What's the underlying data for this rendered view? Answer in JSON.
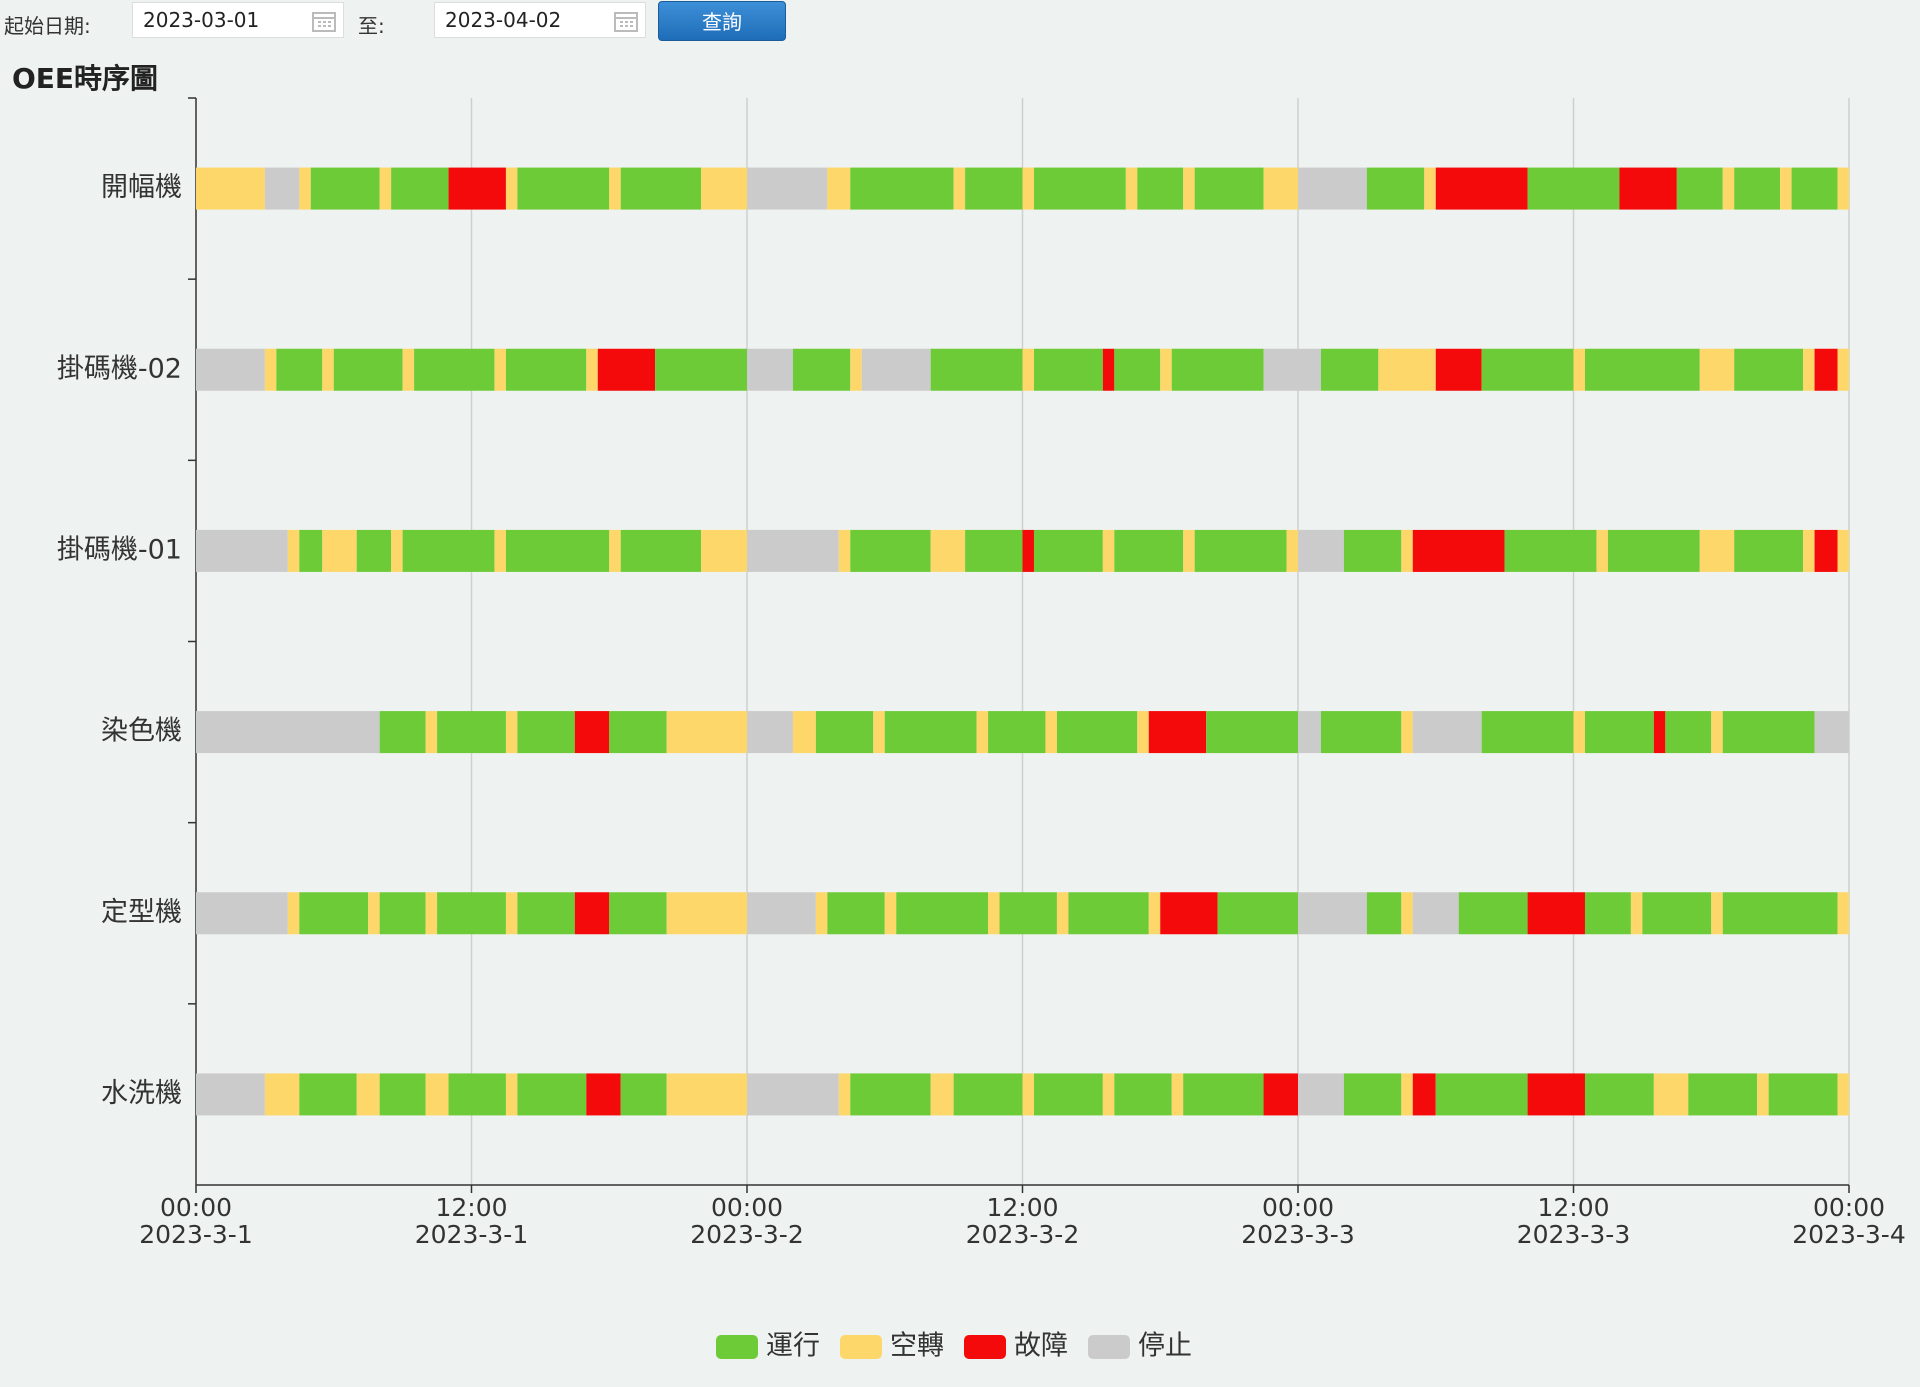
{
  "controls": {
    "start_label": "起始日期:",
    "start_value": "2023-03-01",
    "end_label": "至:",
    "end_value": "2023-04-02",
    "button": "查詢"
  },
  "chart_data": {
    "type": "timeline",
    "title": "OEE時序圖",
    "series": [
      {
        "name": "運行",
        "color": "#6dcb38"
      },
      {
        "name": "空轉",
        "color": "#fed76b"
      },
      {
        "name": "故障",
        "color": "#f40a0a"
      },
      {
        "name": "停止",
        "color": "#cbcbcb"
      }
    ],
    "xlim": [
      0,
      72
    ],
    "xticks": [
      {
        "value": 0,
        "label": "00:00",
        "date": "2023-3-1"
      },
      {
        "value": 12,
        "label": "12:00",
        "date": "2023-3-1"
      },
      {
        "value": 24,
        "label": "00:00",
        "date": "2023-3-2"
      },
      {
        "value": 36,
        "label": "12:00",
        "date": "2023-3-2"
      },
      {
        "value": 48,
        "label": "00:00",
        "date": "2023-3-3"
      },
      {
        "value": 60,
        "label": "12:00",
        "date": "2023-3-3"
      },
      {
        "value": 72,
        "label": "00:00",
        "date": "2023-3-4"
      }
    ],
    "grid": true,
    "rows": [
      {
        "name": "開幅機",
        "states": [
          "空轉",
          "停止",
          "空轉",
          "運行",
          "空轉",
          "運行",
          "故障",
          "空轉",
          "運行",
          "空轉",
          "運行",
          "空轉",
          "停止",
          "空轉",
          "運行",
          "空轉",
          "運行",
          "空轉",
          "運行",
          "空轉",
          "運行",
          "空轉",
          "運行",
          "空轉",
          "停止",
          "運行",
          "空轉",
          "故障",
          "運行",
          "故障",
          "運行",
          "空轉",
          "運行",
          "空轉",
          "運行",
          "空轉"
        ],
        "hours": [
          3,
          1.5,
          0.5,
          3,
          0.5,
          2.5,
          2.5,
          0.5,
          4,
          0.5,
          3.5,
          2,
          3.5,
          1,
          4.5,
          0.5,
          2.5,
          0.5,
          4,
          0.5,
          2,
          0.5,
          3,
          1.5,
          3,
          2.5,
          0.5,
          4,
          4,
          2.5,
          2,
          0.5,
          2,
          0.5,
          2,
          0.5
        ]
      },
      {
        "name": "掛碼機-02",
        "states": [
          "停止",
          "空轉",
          "運行",
          "空轉",
          "運行",
          "空轉",
          "運行",
          "空轉",
          "運行",
          "空轉",
          "故障",
          "運行",
          "停止",
          "運行",
          "空轉",
          "停止",
          "運行",
          "空轉",
          "運行",
          "故障",
          "運行",
          "空轉",
          "運行",
          "停止",
          "運行",
          "空轉",
          "故障",
          "運行",
          "空轉",
          "運行",
          "空轉",
          "運行",
          "空轉",
          "故障",
          "空轉"
        ],
        "hours": [
          3,
          0.5,
          2,
          0.5,
          3,
          0.5,
          3.5,
          0.5,
          3.5,
          0.5,
          2.5,
          4,
          2,
          2.5,
          0.5,
          3,
          4,
          0.5,
          3,
          0.5,
          2,
          0.5,
          4,
          2.5,
          2.5,
          2.5,
          2,
          4,
          0.5,
          5,
          1.5,
          3,
          0.5,
          1,
          0.5
        ]
      },
      {
        "name": "掛碼機-01",
        "states": [
          "停止",
          "空轉",
          "運行",
          "空轉",
          "運行",
          "空轉",
          "運行",
          "空轉",
          "運行",
          "空轉",
          "運行",
          "空轉",
          "停止",
          "空轉",
          "運行",
          "空轉",
          "運行",
          "故障",
          "運行",
          "空轉",
          "運行",
          "空轉",
          "運行",
          "空轉",
          "停止",
          "運行",
          "空轉",
          "故障",
          "運行",
          "空轉",
          "運行",
          "空轉",
          "運行",
          "空轉",
          "故障",
          "空轉"
        ],
        "hours": [
          4,
          0.5,
          1,
          1.5,
          1.5,
          0.5,
          4,
          0.5,
          4.5,
          0.5,
          3.5,
          2,
          4,
          0.5,
          3.5,
          1.5,
          2.5,
          0.5,
          3,
          0.5,
          3,
          0.5,
          4,
          0.5,
          2,
          2.5,
          0.5,
          4,
          4,
          0.5,
          4,
          1.5,
          3,
          0.5,
          1,
          0.5
        ]
      },
      {
        "name": "染色機",
        "states": [
          "停止",
          "運行",
          "空轉",
          "運行",
          "空轉",
          "運行",
          "故障",
          "運行",
          "空轉",
          "停止",
          "空轉",
          "運行",
          "空轉",
          "運行",
          "空轉",
          "運行",
          "空轉",
          "運行",
          "空轉",
          "故障",
          "運行",
          "停止",
          "運行",
          "空轉",
          "停止",
          "運行",
          "空轉",
          "運行",
          "故障",
          "運行",
          "空轉",
          "運行",
          "停止"
        ],
        "hours": [
          8,
          2,
          0.5,
          3,
          0.5,
          2.5,
          1.5,
          2.5,
          3.5,
          2,
          1,
          2.5,
          0.5,
          4,
          0.5,
          2.5,
          0.5,
          3.5,
          0.5,
          2.5,
          4,
          1,
          3.5,
          0.5,
          3,
          4,
          0.5,
          3,
          0.5,
          2,
          0.5,
          4,
          1.5
        ]
      },
      {
        "name": "定型機",
        "states": [
          "停止",
          "空轉",
          "運行",
          "空轉",
          "運行",
          "空轉",
          "運行",
          "空轉",
          "運行",
          "故障",
          "運行",
          "空轉",
          "停止",
          "空轉",
          "運行",
          "空轉",
          "運行",
          "空轉",
          "運行",
          "空轉",
          "運行",
          "空轉",
          "故障",
          "運行",
          "停止",
          "運行",
          "空轉",
          "停止",
          "運行",
          "故障",
          "運行",
          "空轉",
          "運行",
          "空轉",
          "運行",
          "空轉"
        ],
        "hours": [
          4,
          0.5,
          3,
          0.5,
          2,
          0.5,
          3,
          0.5,
          2.5,
          1.5,
          2.5,
          3.5,
          3,
          0.5,
          2.5,
          0.5,
          4,
          0.5,
          2.5,
          0.5,
          3.5,
          0.5,
          2.5,
          3.5,
          3,
          1.5,
          0.5,
          2,
          3,
          2.5,
          2,
          0.5,
          3,
          0.5,
          5,
          0.5
        ]
      },
      {
        "name": "水洗機",
        "states": [
          "停止",
          "空轉",
          "運行",
          "空轉",
          "運行",
          "空轉",
          "運行",
          "空轉",
          "運行",
          "故障",
          "運行",
          "空轉",
          "停止",
          "空轉",
          "運行",
          "空轉",
          "運行",
          "空轉",
          "運行",
          "空轉",
          "運行",
          "空轉",
          "運行",
          "故障",
          "停止",
          "運行",
          "空轉",
          "故障",
          "運行",
          "故障",
          "運行",
          "空轉",
          "運行",
          "空轉",
          "運行",
          "空轉"
        ],
        "hours": [
          3,
          1.5,
          2.5,
          1,
          2,
          1,
          2.5,
          0.5,
          3,
          1.5,
          2,
          3.5,
          4,
          0.5,
          3.5,
          1,
          3,
          0.5,
          3,
          0.5,
          2.5,
          0.5,
          3.5,
          1.5,
          2,
          2.5,
          0.5,
          1,
          4,
          2.5,
          3,
          1.5,
          3,
          0.5,
          3,
          0.5
        ]
      }
    ]
  }
}
